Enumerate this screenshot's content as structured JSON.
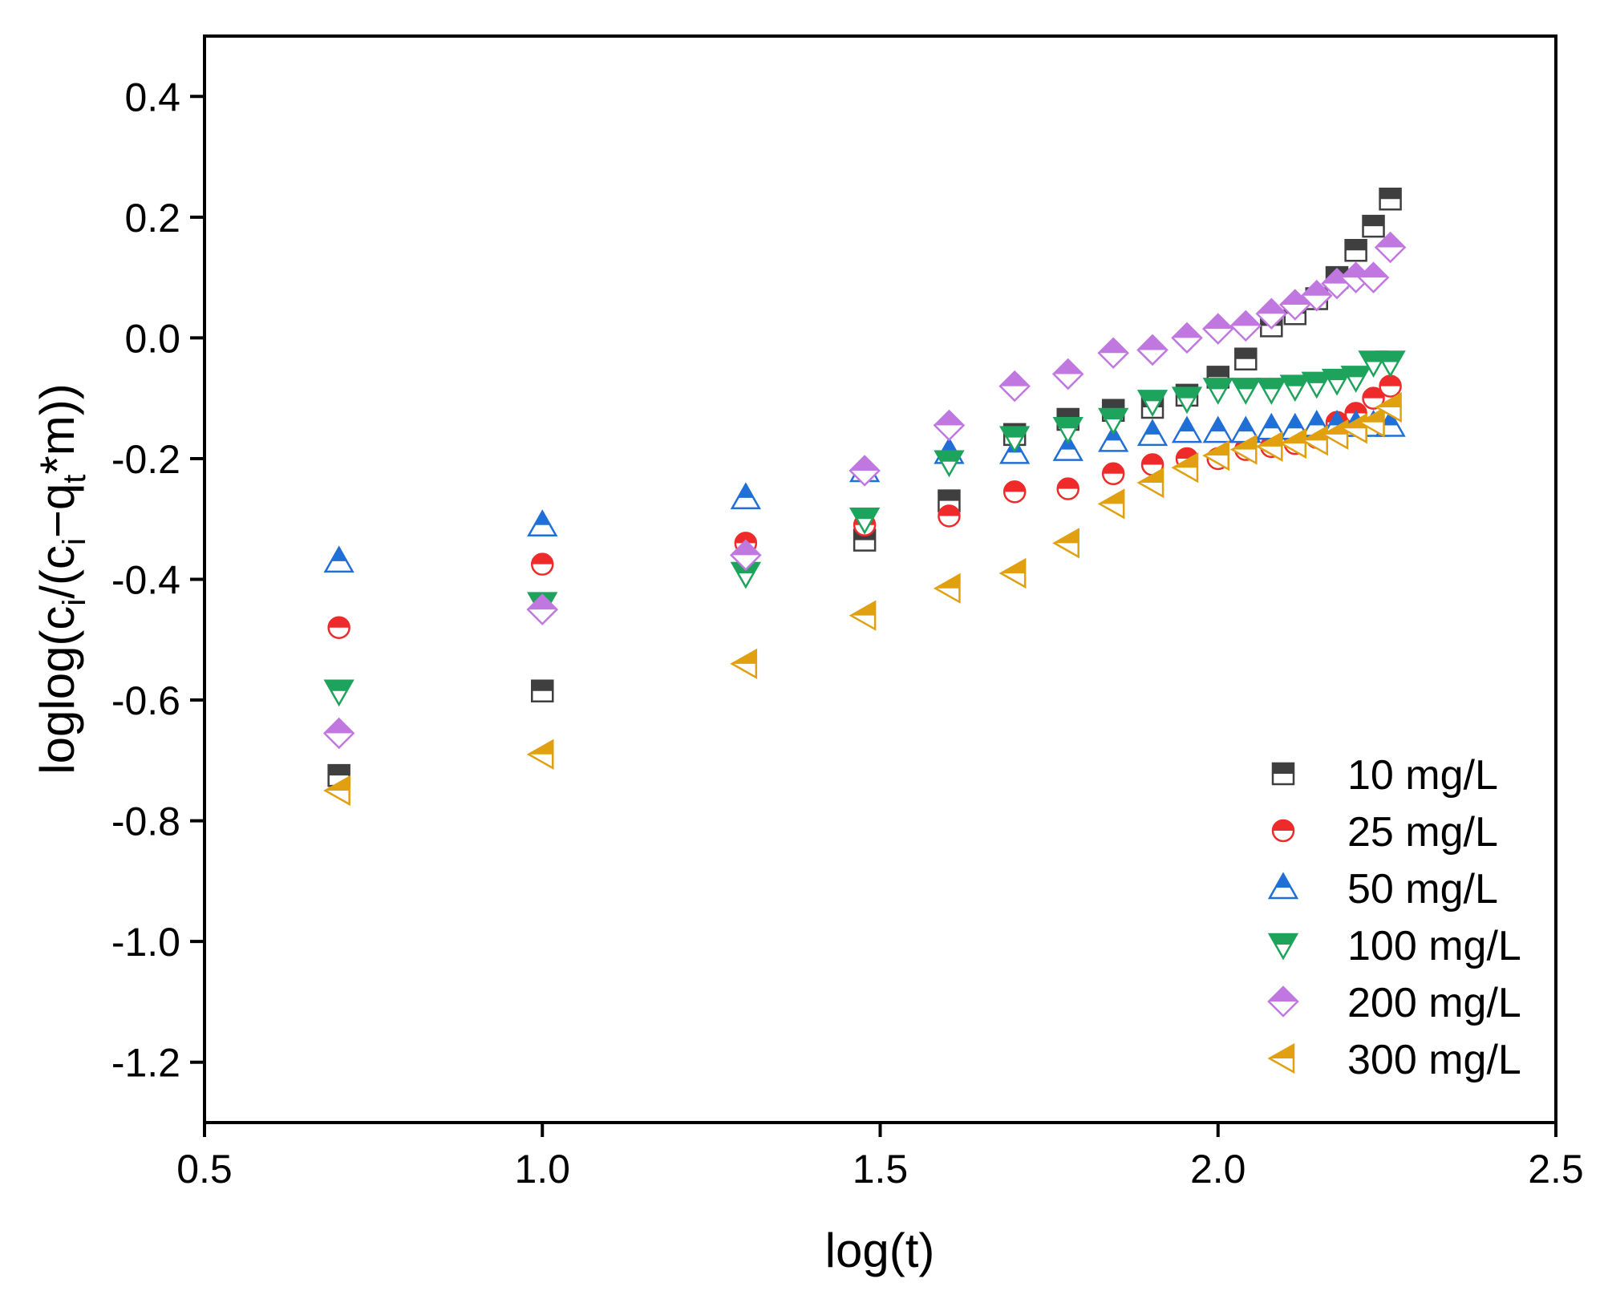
{
  "chart_data": {
    "type": "scatter",
    "xlabel": "log(t)",
    "ylabel": {
      "part1": "loglog(c",
      "sub1": "i",
      "part2": "/(c",
      "sub2": "i",
      "part3": "−q",
      "sub3": "t",
      "part4": "*m))"
    },
    "xlim": [
      0.5,
      2.5
    ],
    "ylim": [
      -1.3,
      0.5
    ],
    "xticks": [
      0.5,
      1.0,
      1.5,
      2.0,
      2.5
    ],
    "xtick_labels": [
      "0.5",
      "1.0",
      "1.5",
      "2.0",
      "2.5"
    ],
    "yticks": [
      0.4,
      0.2,
      0.0,
      -0.2,
      -0.4,
      -0.6,
      -0.8,
      -1.0,
      -1.2
    ],
    "ytick_labels": [
      "0.4",
      "0.2",
      "0.0",
      "-0.2",
      "-0.4",
      "-0.6",
      "-0.8",
      "-1.0",
      "-1.2"
    ],
    "grid": false,
    "legend_position": "bottom-right",
    "series": [
      {
        "name": "10 mg/L",
        "marker": "square",
        "color": "#3f3f3f",
        "x": [
          0.699,
          1.0,
          1.477,
          1.602,
          1.699,
          1.778,
          1.845,
          1.903,
          1.954,
          2.0,
          2.041,
          2.079,
          2.114,
          2.146,
          2.176,
          2.204,
          2.23,
          2.255
        ],
        "y": [
          -0.725,
          -0.585,
          -0.335,
          -0.27,
          -0.16,
          -0.135,
          -0.12,
          -0.115,
          -0.095,
          -0.065,
          -0.035,
          0.02,
          0.04,
          0.065,
          0.1,
          0.145,
          0.185,
          0.23
        ]
      },
      {
        "name": "25 mg/L",
        "marker": "circle",
        "color": "#ee2a2a",
        "x": [
          0.699,
          1.0,
          1.301,
          1.477,
          1.602,
          1.699,
          1.778,
          1.845,
          1.903,
          1.954,
          2.0,
          2.041,
          2.079,
          2.114,
          2.146,
          2.176,
          2.204,
          2.23,
          2.255
        ],
        "y": [
          -0.48,
          -0.375,
          -0.34,
          -0.31,
          -0.295,
          -0.255,
          -0.25,
          -0.225,
          -0.21,
          -0.2,
          -0.2,
          -0.185,
          -0.18,
          -0.175,
          -0.165,
          -0.14,
          -0.125,
          -0.1,
          -0.08
        ]
      },
      {
        "name": "50 mg/L",
        "marker": "triangle-up",
        "color": "#1f6fd6",
        "x": [
          0.699,
          1.0,
          1.301,
          1.477,
          1.602,
          1.699,
          1.778,
          1.845,
          1.903,
          1.954,
          2.0,
          2.041,
          2.079,
          2.114,
          2.146,
          2.176,
          2.204,
          2.23,
          2.255
        ],
        "y": [
          -0.37,
          -0.31,
          -0.265,
          -0.22,
          -0.19,
          -0.19,
          -0.185,
          -0.17,
          -0.16,
          -0.155,
          -0.155,
          -0.155,
          -0.15,
          -0.15,
          -0.145,
          -0.145,
          -0.145,
          -0.145,
          -0.145
        ]
      },
      {
        "name": "100 mg/L",
        "marker": "triangle-down",
        "color": "#1ea35c",
        "x": [
          0.699,
          1.0,
          1.301,
          1.477,
          1.602,
          1.699,
          1.778,
          1.845,
          1.903,
          1.954,
          2.0,
          2.041,
          2.079,
          2.114,
          2.146,
          2.176,
          2.204,
          2.23,
          2.255
        ],
        "y": [
          -0.585,
          -0.44,
          -0.39,
          -0.3,
          -0.205,
          -0.165,
          -0.15,
          -0.135,
          -0.105,
          -0.1,
          -0.085,
          -0.085,
          -0.085,
          -0.08,
          -0.075,
          -0.07,
          -0.065,
          -0.04,
          -0.04
        ]
      },
      {
        "name": "200 mg/L",
        "marker": "diamond",
        "color": "#c078e0",
        "x": [
          0.699,
          1.0,
          1.301,
          1.477,
          1.602,
          1.699,
          1.778,
          1.845,
          1.903,
          1.954,
          2.0,
          2.041,
          2.079,
          2.114,
          2.146,
          2.176,
          2.204,
          2.23,
          2.255
        ],
        "y": [
          -0.655,
          -0.45,
          -0.36,
          -0.22,
          -0.145,
          -0.08,
          -0.06,
          -0.025,
          -0.02,
          0.0,
          0.015,
          0.02,
          0.04,
          0.055,
          0.07,
          0.09,
          0.1,
          0.1,
          0.15
        ]
      },
      {
        "name": "300 mg/L",
        "marker": "triangle-left",
        "color": "#e0a010",
        "x": [
          0.699,
          1.0,
          1.301,
          1.477,
          1.602,
          1.699,
          1.778,
          1.845,
          1.903,
          1.954,
          2.0,
          2.041,
          2.079,
          2.114,
          2.146,
          2.176,
          2.204,
          2.23,
          2.255
        ],
        "y": [
          -0.75,
          -0.69,
          -0.54,
          -0.46,
          -0.415,
          -0.39,
          -0.34,
          -0.275,
          -0.24,
          -0.215,
          -0.195,
          -0.185,
          -0.18,
          -0.175,
          -0.17,
          -0.16,
          -0.15,
          -0.14,
          -0.115
        ]
      }
    ]
  }
}
